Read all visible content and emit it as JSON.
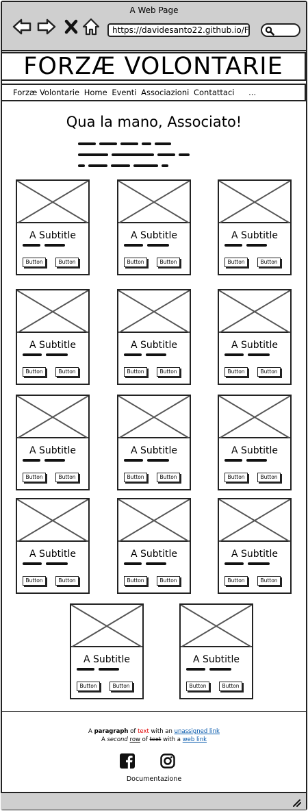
{
  "window": {
    "title": "A Web Page",
    "url": "https://davidesanto22.github.io/F",
    "chrome_color": "#cfcfcf"
  },
  "icons": {
    "back": "back-arrow-icon",
    "forward": "forward-arrow-icon",
    "close": "close-icon",
    "home": "home-icon",
    "search": "search-icon",
    "facebook": "facebook-icon",
    "instagram": "instagram-icon",
    "resize": "resize-grip-icon"
  },
  "header": {
    "title": "FORZÆ VOLONTARIE"
  },
  "nav": {
    "items": [
      "Forzæ Volontarie",
      "Home",
      "Eventi",
      "Associazioni",
      "Contattaci"
    ],
    "more": "..."
  },
  "main": {
    "title": "Qua la mano, Associato!"
  },
  "cards": [
    {
      "subtitle": "A Subtitle",
      "button1": "Button",
      "button2": "Button"
    },
    {
      "subtitle": "A Subtitle",
      "button1": "Button",
      "button2": "Button"
    },
    {
      "subtitle": "A Subtitle",
      "button1": "Button",
      "button2": "Button"
    },
    {
      "subtitle": "A Subtitle",
      "button1": "Button",
      "button2": "Button"
    },
    {
      "subtitle": "A Subtitle",
      "button1": "Button",
      "button2": "Button"
    },
    {
      "subtitle": "A Subtitle",
      "button1": "Button",
      "button2": "Button"
    },
    {
      "subtitle": "A Subtitle",
      "button1": "Button",
      "button2": "Button"
    },
    {
      "subtitle": "A Subtitle",
      "button1": "Button",
      "button2": "Button"
    },
    {
      "subtitle": "A Subtitle",
      "button1": "Button",
      "button2": "Button"
    },
    {
      "subtitle": "A Subtitle",
      "button1": "Button",
      "button2": "Button"
    },
    {
      "subtitle": "A Subtitle",
      "button1": "Button",
      "button2": "Button"
    },
    {
      "subtitle": "A Subtitle",
      "button1": "Button",
      "button2": "Button"
    },
    {
      "subtitle": "A Subtitle",
      "button1": "Button",
      "button2": "Button"
    },
    {
      "subtitle": "A Subtitle",
      "button1": "Button",
      "button2": "Button"
    }
  ],
  "footer": {
    "line1": {
      "a": "A ",
      "bold": "paragraph",
      "b": " of ",
      "red": "text",
      "c": " with an ",
      "link": "unassigned link",
      "link_color": "#0055aa",
      "red_color": "#e00000"
    },
    "line2": {
      "a": "A ",
      "italic": "second",
      "b": " ",
      "underline": "row",
      "c": " of ",
      "strike": "text",
      "d": " with a ",
      "link": "web link"
    },
    "documentation": "Documentazione"
  }
}
